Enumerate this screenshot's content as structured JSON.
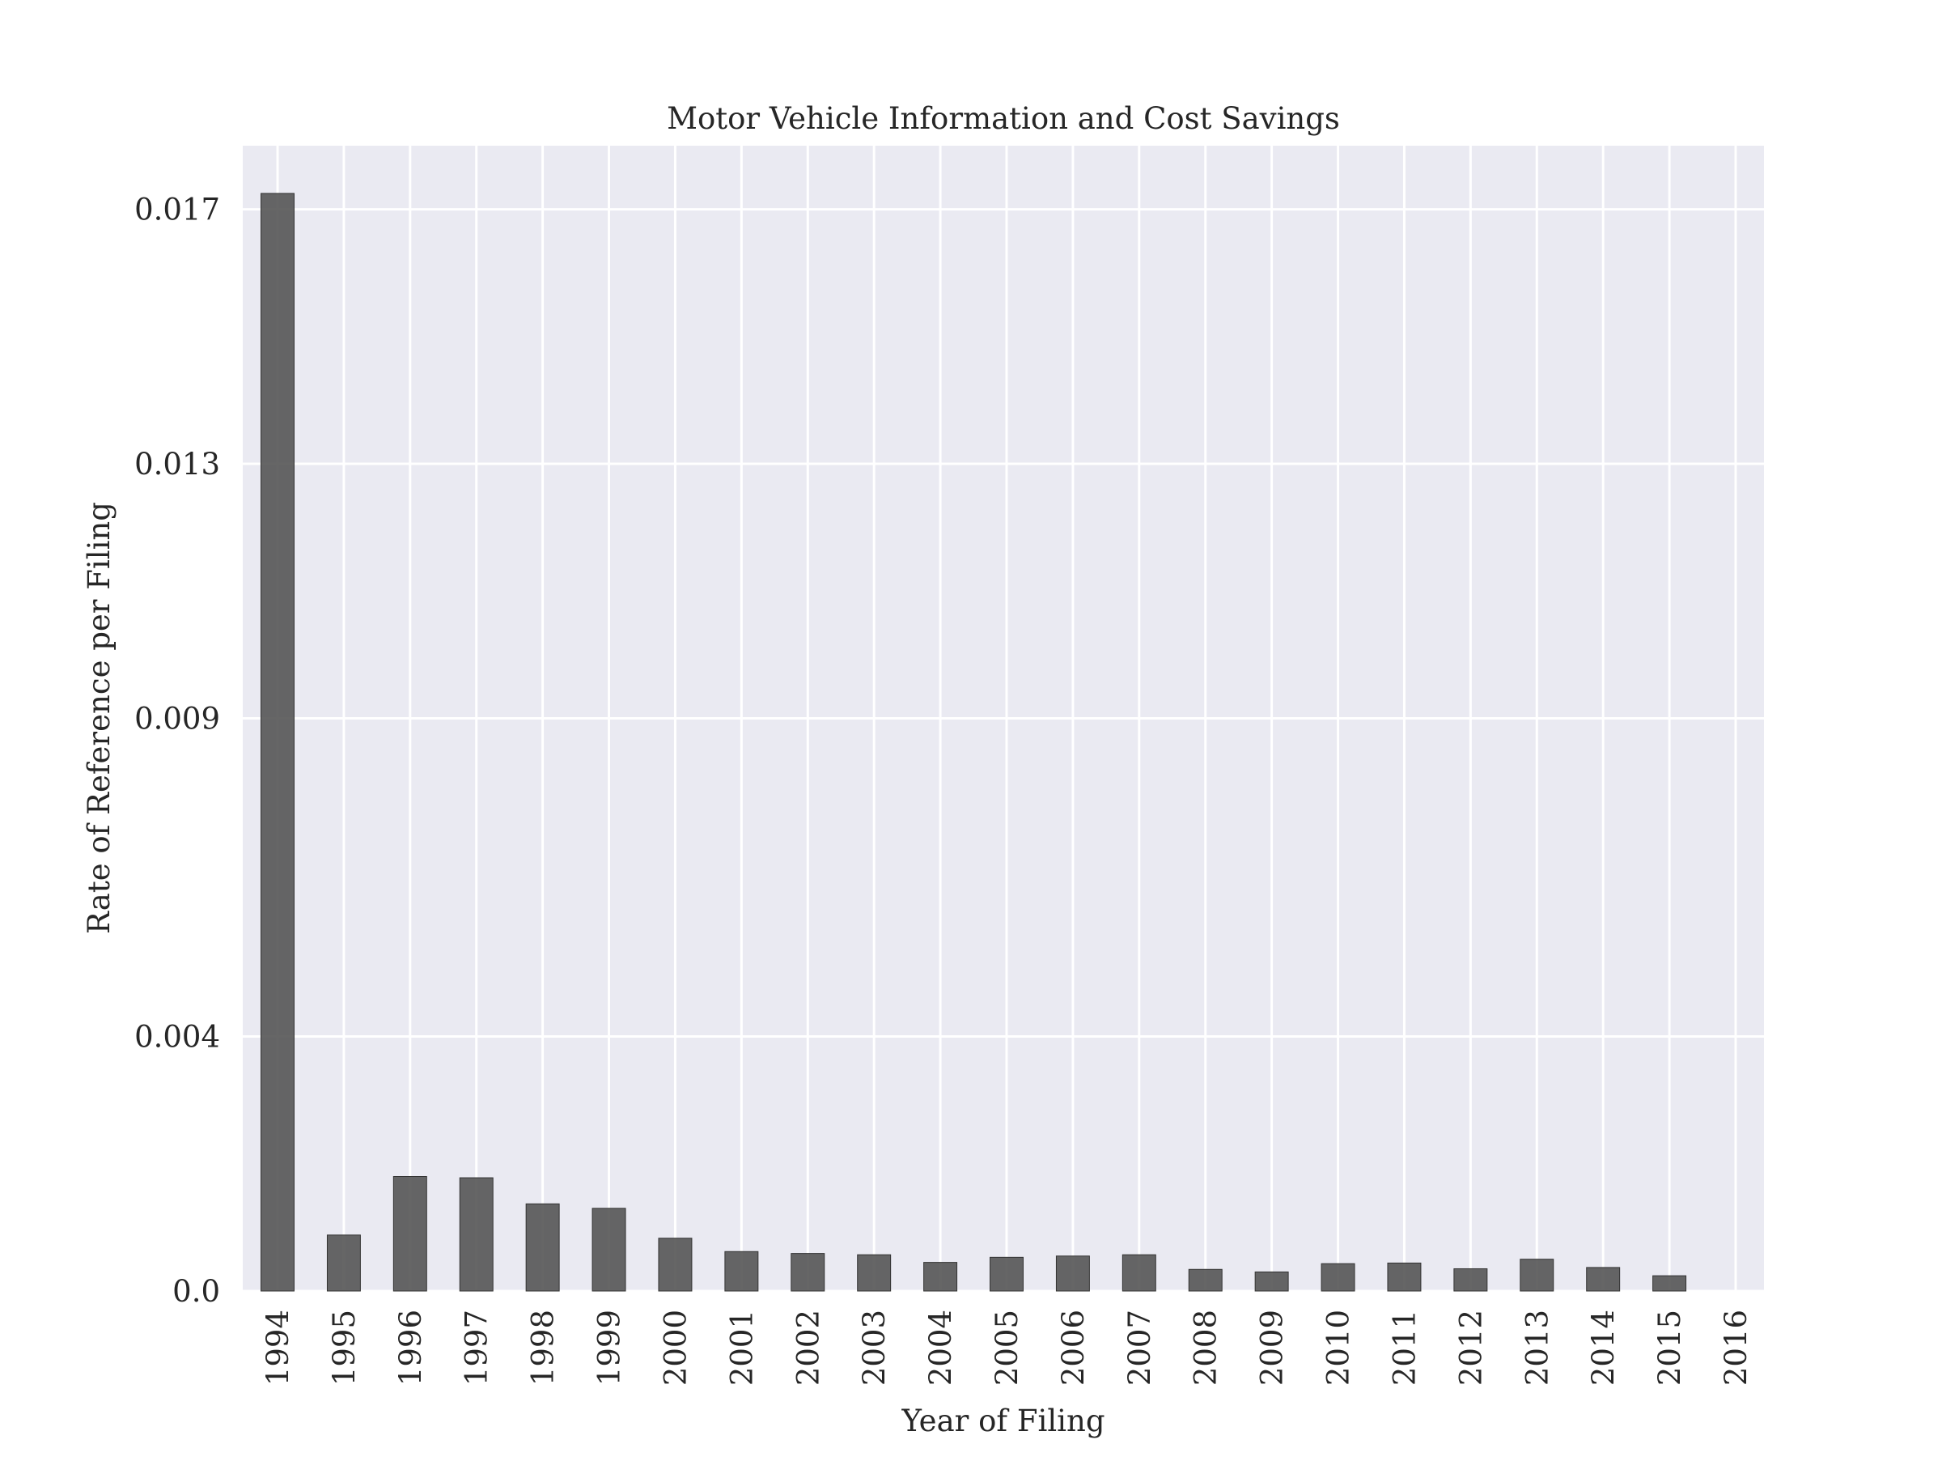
{
  "chart_data": {
    "type": "bar",
    "title": "Motor Vehicle Information and Cost Savings",
    "xlabel": "Year of Filing",
    "ylabel": "Rate of Reference per Filing",
    "categories": [
      "1994",
      "1995",
      "1996",
      "1997",
      "1998",
      "1999",
      "2000",
      "2001",
      "2002",
      "2003",
      "2004",
      "2005",
      "2006",
      "2007",
      "2008",
      "2009",
      "2010",
      "2011",
      "2012",
      "2013",
      "2014",
      "2015",
      "2016"
    ],
    "values": [
      0.01725,
      0.00088,
      0.0018,
      0.00178,
      0.00137,
      0.0013,
      0.00083,
      0.00062,
      0.00059,
      0.00057,
      0.00045,
      0.00053,
      0.00055,
      0.00057,
      0.00034,
      0.0003,
      0.00043,
      0.00044,
      0.00035,
      0.0005,
      0.00037,
      0.00024,
      0.0
    ],
    "yticks": [
      0.0,
      0.004,
      0.009,
      0.013,
      0.017
    ],
    "ytick_labels": [
      "0.0",
      "0.004",
      "0.009",
      "0.013",
      "0.017"
    ],
    "ylim": [
      0.0,
      0.018
    ],
    "grid": true,
    "colors": {
      "bar": "#555555",
      "plot_background": "#eaeaf2",
      "grid": "#ffffff"
    }
  }
}
